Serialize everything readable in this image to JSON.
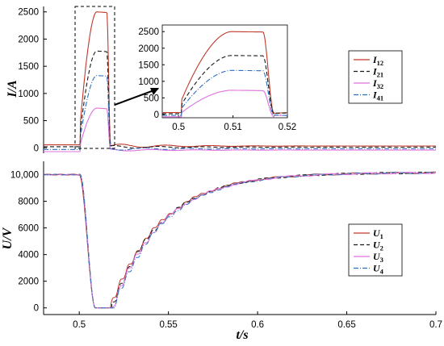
{
  "chart_data": [
    {
      "id": "current",
      "type": "line",
      "ylabel": "I/A",
      "xlim": [
        0.48,
        0.7
      ],
      "ylim": [
        -100,
        2600
      ],
      "y_ticks": [
        "2500",
        "2000",
        "1500",
        "1000",
        "500",
        "0"
      ],
      "y_tick_values": [
        2500,
        2000,
        1500,
        1000,
        500,
        0
      ],
      "legend_position": "right",
      "series": [
        {
          "name": "I",
          "sub": "12",
          "color": "#c0392b",
          "dash": "",
          "peak": 2500,
          "pre": 55,
          "ringing": 40
        },
        {
          "name": "I",
          "sub": "21",
          "color": "#1a1a1a",
          "dash": "5,3",
          "peak": 1780,
          "pre": 20,
          "ringing": 30
        },
        {
          "name": "I",
          "sub": "32",
          "color": "#e070e0",
          "dash": "",
          "peak": 730,
          "pre": -70,
          "ringing": 20
        },
        {
          "name": "I",
          "sub": "41",
          "color": "#2e6fbf",
          "dash": "6,2,1,2",
          "peak": 1330,
          "pre": -30,
          "ringing": 30
        }
      ]
    },
    {
      "id": "current-zoom",
      "type": "line",
      "xlim": [
        0.497,
        0.52
      ],
      "ylim": [
        -100,
        2700
      ],
      "x_ticks": [
        "0.5",
        "0.51",
        "0.52"
      ],
      "x_tick_values": [
        0.5,
        0.51,
        0.52
      ],
      "y_ticks": [
        "2500",
        "2000",
        "1500",
        "1000",
        "500",
        "0"
      ],
      "y_tick_values": [
        2500,
        2000,
        1500,
        1000,
        500,
        0
      ]
    },
    {
      "id": "voltage",
      "type": "line",
      "xlabel": "t/s",
      "ylabel": "U/V",
      "xlim": [
        0.48,
        0.7
      ],
      "ylim": [
        -500,
        11000
      ],
      "x_ticks": [
        "0.5",
        "0.55",
        "0.6",
        "0.65",
        "0.7"
      ],
      "x_tick_values": [
        0.5,
        0.55,
        0.6,
        0.65,
        0.7
      ],
      "y_ticks": [
        "10,000",
        "8000",
        "6000",
        "4000",
        "2000",
        "0"
      ],
      "y_tick_values": [
        10000,
        8000,
        6000,
        4000,
        2000,
        0
      ],
      "legend_position": "right",
      "series": [
        {
          "name": "U",
          "sub": "1",
          "color": "#c0392b",
          "dash": "",
          "phase": 0.3
        },
        {
          "name": "U",
          "sub": "2",
          "color": "#1a1a1a",
          "dash": "5,3",
          "phase": 1.4
        },
        {
          "name": "U",
          "sub": "3",
          "color": "#e070e0",
          "dash": "",
          "phase": 2.5
        },
        {
          "name": "U",
          "sub": "4",
          "color": "#2e6fbf",
          "dash": "6,2,1,2",
          "phase": 3.6
        }
      ]
    }
  ]
}
